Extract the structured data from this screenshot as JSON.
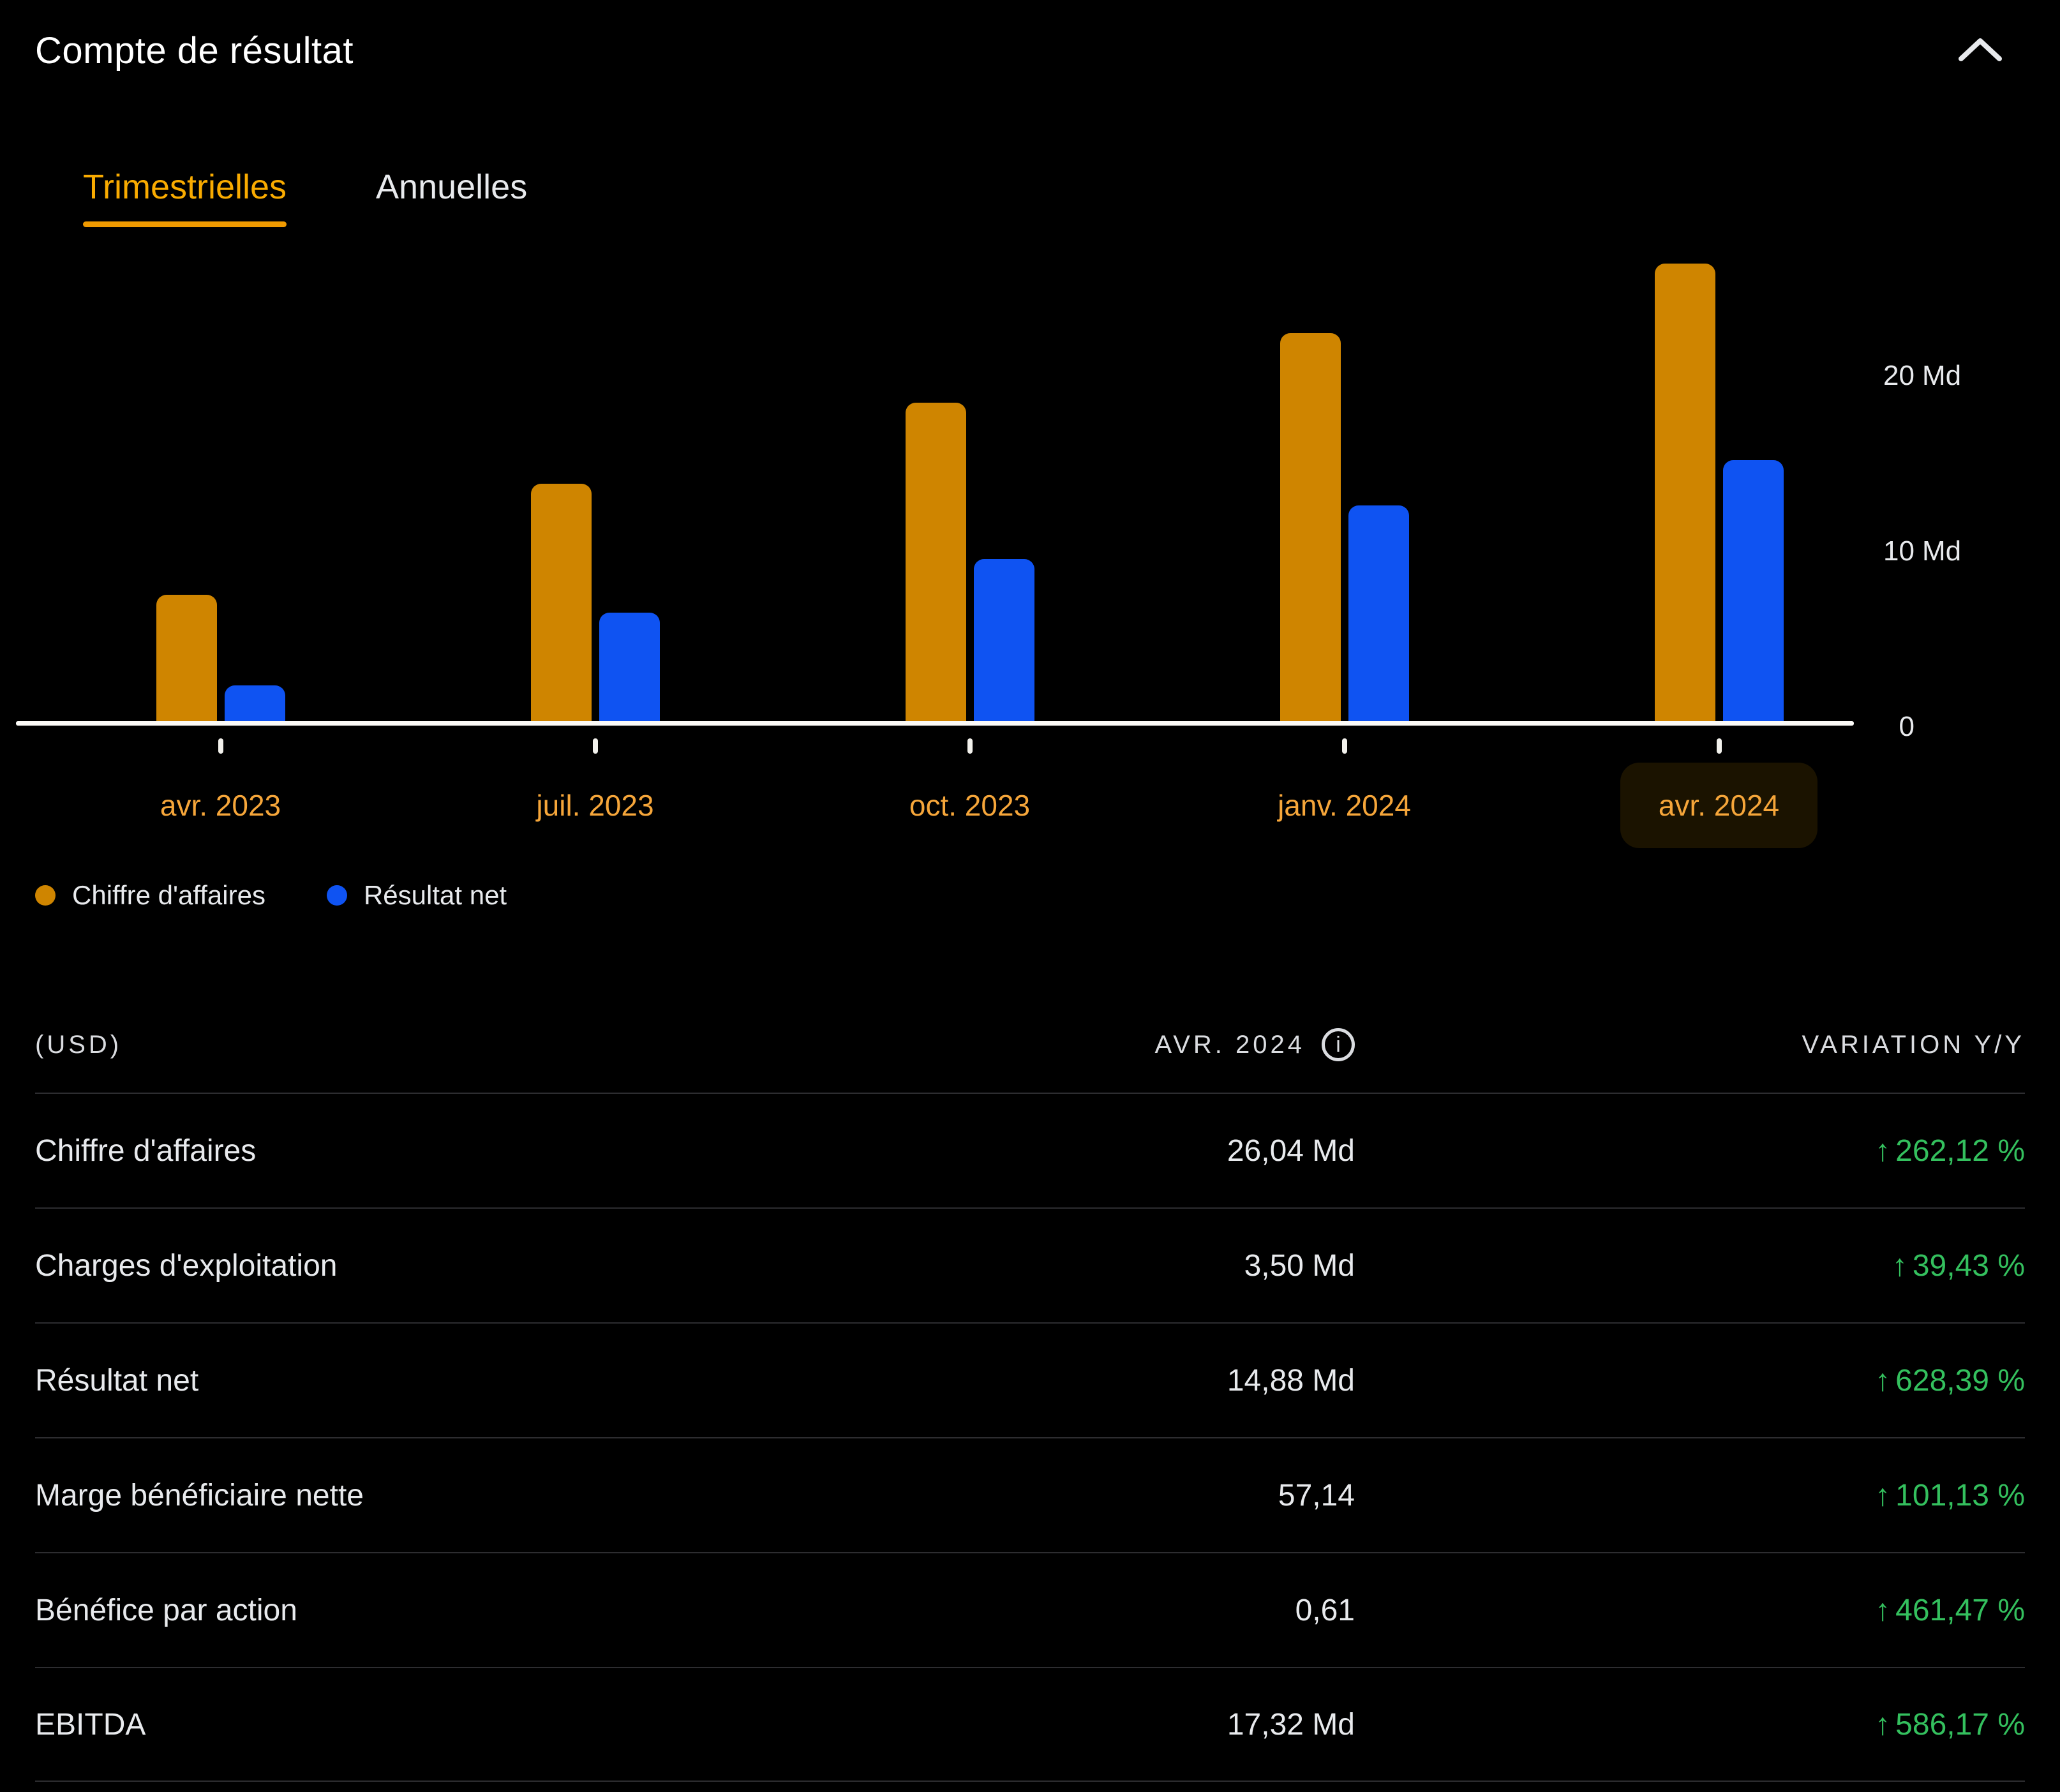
{
  "panel": {
    "title": "Compte de résultat",
    "collapse_icon": "chevron-up"
  },
  "tabs": [
    {
      "label": "Trimestrielles",
      "active": true
    },
    {
      "label": "Annuelles",
      "active": false
    }
  ],
  "chart_data": {
    "type": "bar",
    "categories": [
      "avr. 2023",
      "juil. 2023",
      "oct. 2023",
      "janv. 2024",
      "avr. 2024"
    ],
    "highlighted_category": "avr. 2024",
    "series": [
      {
        "name": "Chiffre d'affaires",
        "color": "#cf8500",
        "values": [
          7.19,
          13.51,
          18.12,
          22.1,
          26.04
        ]
      },
      {
        "name": "Résultat net",
        "color": "#0f53f2",
        "values": [
          2.04,
          6.19,
          9.24,
          12.29,
          14.88
        ]
      }
    ],
    "unit": "Md",
    "y_ticks": [
      {
        "value": 20,
        "num": "20",
        "unit": "Md"
      },
      {
        "value": 10,
        "num": "10",
        "unit": "Md"
      },
      {
        "value": 0,
        "num": "0",
        "unit": ""
      }
    ],
    "ylim": [
      0,
      27.8
    ],
    "grid": false,
    "value_axis_side": "right",
    "legend_position": "bottom-left"
  },
  "table": {
    "currency_note": "(USD)",
    "period_header": "AVR. 2024",
    "period_info_icon": "info-circle",
    "variation_header": "VARIATION Y/Y",
    "positive_color": "#34c05e",
    "rows": [
      {
        "label": "Chiffre d'affaires",
        "value": "26,04 Md",
        "variation": "262,12 %",
        "direction": "up"
      },
      {
        "label": "Charges d'exploitation",
        "value": "3,50 Md",
        "variation": "39,43 %",
        "direction": "up"
      },
      {
        "label": "Résultat net",
        "value": "14,88 Md",
        "variation": "628,39 %",
        "direction": "up"
      },
      {
        "label": "Marge bénéficiaire nette",
        "value": "57,14",
        "variation": "101,13 %",
        "direction": "up"
      },
      {
        "label": "Bénéfice par action",
        "value": "0,61",
        "variation": "461,47 %",
        "direction": "up"
      },
      {
        "label": "EBITDA",
        "value": "17,32 Md",
        "variation": "586,17 %",
        "direction": "up"
      }
    ]
  },
  "colors": {
    "background": "#000000",
    "accent_orange": "#f9ab00",
    "bar_orange": "#cf8500",
    "bar_blue": "#0f53f2",
    "positive_green": "#34c05e",
    "divider": "#2d2d30",
    "text_primary": "#e8eaed"
  }
}
